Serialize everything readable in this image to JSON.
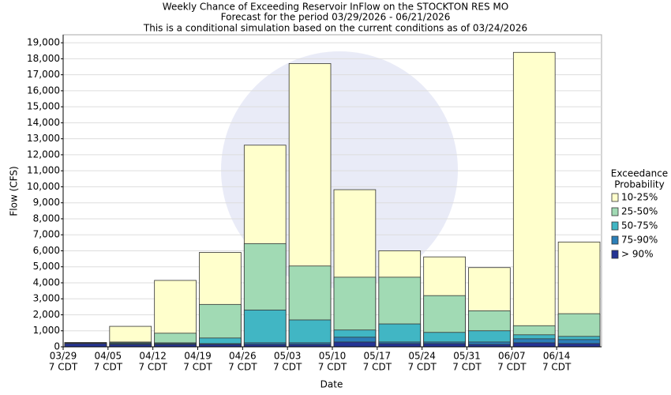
{
  "chart_data": {
    "type": "overlap_bar",
    "title": "Weekly Chance of Exceeding Reservoir InFlow on the STOCKTON RES MO",
    "subtitle": "Forecast for the period 03/29/2026 - 06/21/2026",
    "note": "This is a conditional simulation based on the current conditions as of 03/24/2026",
    "x_label": "Date",
    "y_label": "Flow (CFS)",
    "categories": [
      "03/29",
      "04/05",
      "04/12",
      "04/19",
      "04/26",
      "05/03",
      "05/10",
      "05/17",
      "05/24",
      "05/31",
      "06/07",
      "06/14"
    ],
    "category_sublabel": "7 CDT",
    "legend_title": [
      "Exceedance",
      "Probability"
    ],
    "series": [
      {
        "name": "10-25%",
        "color": "#ffffcc",
        "values": [
          270,
          1280,
          4150,
          5900,
          12600,
          17700,
          9820,
          6000,
          5620,
          4950,
          18400,
          6550
        ]
      },
      {
        "name": "25-50%",
        "color": "#a1dab4",
        "values": [
          260,
          300,
          850,
          2650,
          6450,
          5050,
          4350,
          4350,
          3200,
          2250,
          1320,
          2070
        ]
      },
      {
        "name": "50-75%",
        "color": "#41b6c4",
        "values": [
          250,
          250,
          250,
          550,
          2300,
          1680,
          1050,
          1430,
          900,
          1000,
          750,
          650
        ]
      },
      {
        "name": "75-90%",
        "color": "#2c7fb8",
        "values": [
          230,
          200,
          200,
          200,
          250,
          250,
          600,
          300,
          300,
          300,
          500,
          450
        ]
      },
      {
        "name": "> 90%",
        "color": "#253494",
        "values": [
          200,
          150,
          150,
          150,
          150,
          150,
          300,
          200,
          200,
          150,
          250,
          200
        ]
      }
    ],
    "ylim": [
      0,
      19500
    ],
    "yticks": [
      0,
      {
        "value": 1000,
        "label": "1,000"
      },
      {
        "value": 2000,
        "label": "2,000"
      },
      {
        "value": 3000,
        "label": "3,000"
      },
      {
        "value": 4000,
        "label": "4,000"
      },
      {
        "value": 5000,
        "label": "5,000"
      },
      {
        "value": 6000,
        "label": "6,000"
      },
      {
        "value": 7000,
        "label": "7,000"
      },
      {
        "value": 8000,
        "label": "8,000"
      },
      {
        "value": 9000,
        "label": "9,000"
      },
      {
        "value": 10000,
        "label": "10,000"
      },
      {
        "value": 11000,
        "label": "11,000"
      },
      {
        "value": 12000,
        "label": "12,000"
      },
      {
        "value": 13000,
        "label": "13,000"
      },
      {
        "value": 14000,
        "label": "14,000"
      },
      {
        "value": 15000,
        "label": "15,000"
      },
      {
        "value": 16000,
        "label": "16,000"
      },
      {
        "value": 17000,
        "label": "17,000"
      },
      {
        "value": 18000,
        "label": "18,000"
      },
      {
        "value": 19000,
        "label": "19,000"
      }
    ],
    "grid": true
  }
}
